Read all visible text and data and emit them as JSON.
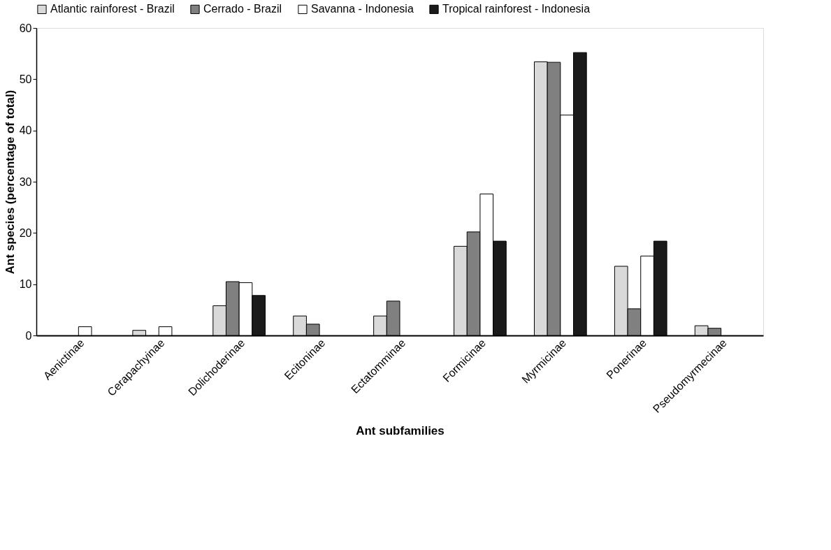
{
  "chart_data": {
    "type": "bar",
    "xlabel": "Ant subfamilies",
    "ylabel": "Ant species (percentage of total)",
    "categories": [
      "Aenictinae",
      "Cerapachyinae",
      "Dolichoderinae",
      "Ecitoninae",
      "Ectatomminae",
      "Formicinae",
      "Myrmicinae",
      "Ponerinae",
      "Pseudomyrmecinae"
    ],
    "series": [
      {
        "name": "Atlantic rainforest - Brazil",
        "color": "#d9d9d9",
        "values": [
          null,
          1.0,
          5.8,
          3.8,
          3.8,
          17.4,
          53.4,
          13.5,
          1.9
        ]
      },
      {
        "name": "Cerrado - Brazil",
        "color": "#808080",
        "values": [
          null,
          null,
          10.5,
          2.2,
          6.7,
          20.2,
          53.3,
          5.2,
          1.4
        ]
      },
      {
        "name": "Savanna - Indonesia",
        "color": "#ffffff",
        "values": [
          1.7,
          1.7,
          10.3,
          null,
          null,
          27.6,
          43.0,
          15.5,
          null
        ]
      },
      {
        "name": "Tropical rainforest - Indonesia",
        "color": "#1a1a1a",
        "values": [
          null,
          null,
          7.8,
          null,
          null,
          18.4,
          55.2,
          18.4,
          null
        ]
      }
    ],
    "ylim": [
      0,
      60
    ],
    "yticks": [
      0,
      10,
      20,
      30,
      40,
      50,
      60
    ],
    "grid": false,
    "legend": "top"
  }
}
